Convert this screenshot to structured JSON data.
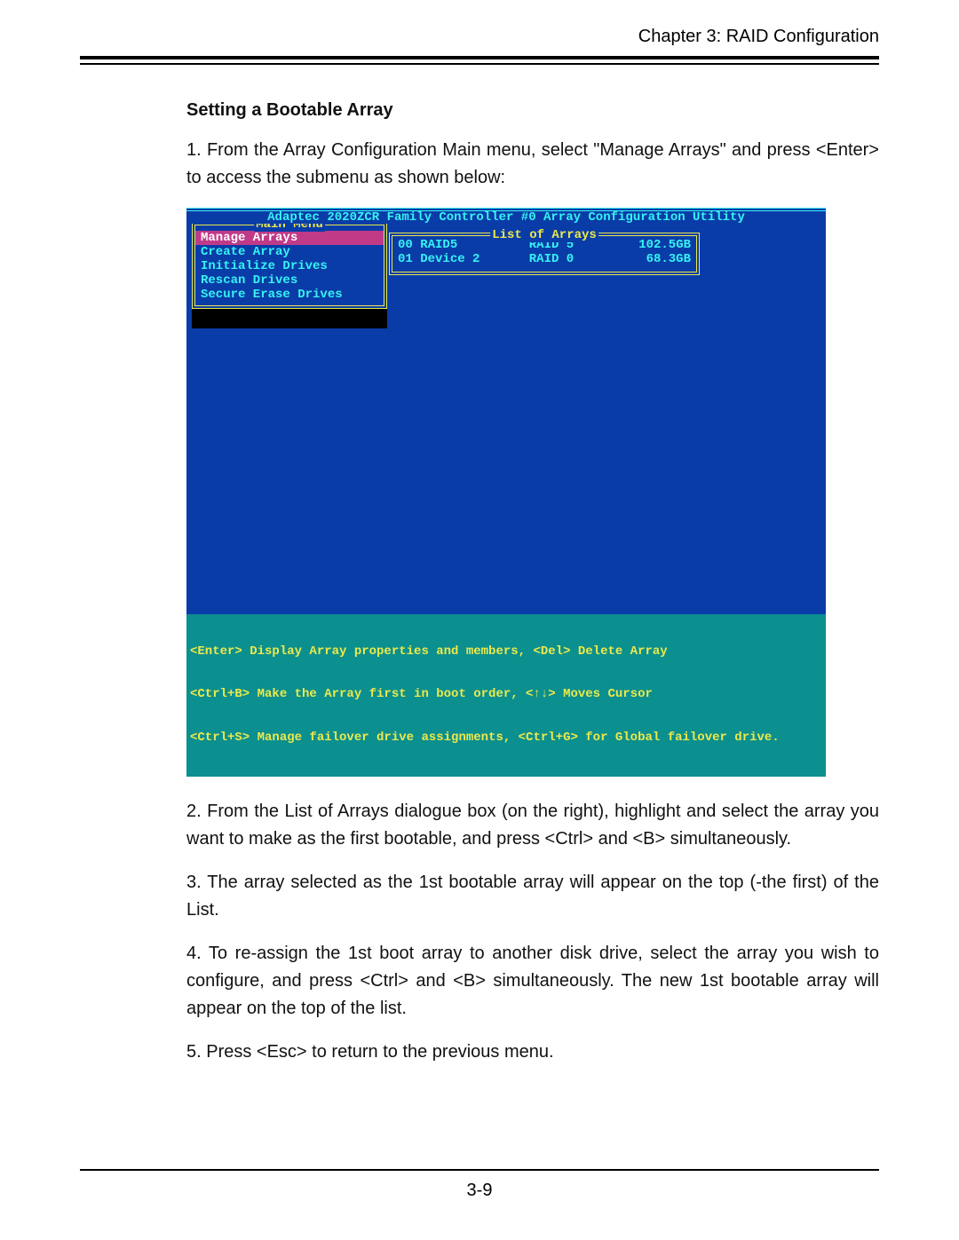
{
  "header": {
    "chapter_label": "Chapter 3:  RAID Configuration"
  },
  "section": {
    "title": "Setting a Bootable Array"
  },
  "paragraphs": {
    "p1": "1. From the Array Configuration Main menu, select \"Manage Arrays\" and  press <Enter> to access the submenu as shown below:",
    "p2": "2. From the List of Arrays dialogue box (on the right), highlight and select the array you want to make as the first bootable, and press <Ctrl> and <B> simultaneously.",
    "p3": "3. The array selected as  the 1st bootable array will appear on the top (-the first) of the List.",
    "p4": "4. To re-assign the 1st boot array to another disk drive, select the array you wish to configure, and press <Ctrl> and  <B> simultaneously.  The new 1st bootable array will appear on the top of the list.",
    "p5": "5. Press <Esc> to return to the previous menu."
  },
  "screenshot": {
    "colors": {
      "background": "#0a3ca8",
      "cyan_text": "#36f3f2",
      "yellow": "#ece94a",
      "magenta_selected": "#c03a88",
      "helpbar_bg": "#0b8f8f",
      "black": "#000000"
    },
    "title_bar": " Adaptec 2020ZCR Family Controller #0 Array Configuration Utility ",
    "main_menu": {
      "title": "Main Menu",
      "items": [
        {
          "label": "Manage Arrays",
          "selected": true
        },
        {
          "label": "Create Array",
          "selected": false
        },
        {
          "label": "Initialize Drives",
          "selected": false
        },
        {
          "label": "Rescan Drives",
          "selected": false
        },
        {
          "label": "Secure Erase Drives",
          "selected": false
        }
      ]
    },
    "list_of_arrays": {
      "title": "List of Arrays",
      "rows": [
        {
          "id": "00",
          "name": "RAID5",
          "type": "RAID 5",
          "size": "102.5GB"
        },
        {
          "id": "01",
          "name": "Device 2",
          "type": "RAID 0",
          "size": "68.3GB"
        }
      ]
    },
    "help_lines": {
      "l1": "<Enter> Display Array properties and members, <Del> Delete Array",
      "l2": "<Ctrl+B> Make the Array first in boot order, <↑↓> Moves Cursor",
      "l3": "<Ctrl+S> Manage failover drive assignments, <Ctrl+G> for Global failover drive."
    }
  },
  "footer": {
    "page_number": "3-9"
  }
}
